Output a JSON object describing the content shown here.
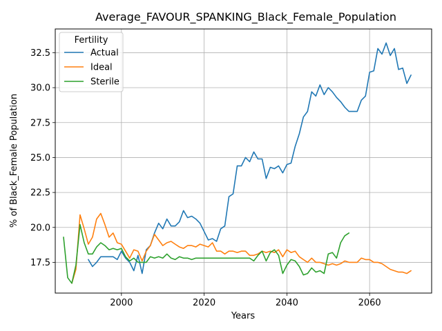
{
  "chart_data": {
    "type": "line",
    "title": "Average_FAVOUR_SPANKING_Black_Female_Population",
    "xlabel": "Years",
    "ylabel": "% of Black_Female Population",
    "xlim": [
      1984,
      2075
    ],
    "ylim": [
      15.3,
      34.2
    ],
    "xticks": [
      2000,
      2020,
      2040,
      2060
    ],
    "yticks": [
      17.5,
      20.0,
      22.5,
      25.0,
      27.5,
      30.0,
      32.5
    ],
    "ytick_labels": [
      "17.5",
      "20.0",
      "22.5",
      "25.0",
      "27.5",
      "30.0",
      "32.5"
    ],
    "grid": true,
    "legend": {
      "title": "Fertility",
      "location": "top-left"
    },
    "series": [
      {
        "name": "Actual",
        "color": "#1f77b4",
        "x": [
          1992,
          1993,
          1994,
          1995,
          1996,
          1997,
          1998,
          1999,
          2000,
          2001,
          2002,
          2003,
          2004,
          2005,
          2006,
          2007,
          2008,
          2009,
          2010,
          2011,
          2012,
          2013,
          2014,
          2015,
          2016,
          2017,
          2018,
          2019,
          2020,
          2021,
          2022,
          2023,
          2024,
          2025,
          2026,
          2027,
          2028,
          2029,
          2030,
          2031,
          2032,
          2033,
          2034,
          2035,
          2036,
          2037,
          2038,
          2039,
          2040,
          2041,
          2042,
          2043,
          2044,
          2045,
          2046,
          2047,
          2048,
          2049,
          2050,
          2051,
          2052,
          2053,
          2054,
          2055,
          2056,
          2057,
          2058,
          2059,
          2060,
          2061,
          2062,
          2063,
          2064,
          2065,
          2066,
          2067,
          2068,
          2069,
          2070
        ],
        "y": [
          17.7,
          17.2,
          17.5,
          17.9,
          17.9,
          17.9,
          17.9,
          17.7,
          18.3,
          17.8,
          17.5,
          16.9,
          18.0,
          16.7,
          18.4,
          18.7,
          19.6,
          20.3,
          19.9,
          20.6,
          20.1,
          20.1,
          20.4,
          21.2,
          20.7,
          20.8,
          20.6,
          20.3,
          19.7,
          19.1,
          19.2,
          19.0,
          19.9,
          20.1,
          22.2,
          22.4,
          24.4,
          24.4,
          25.0,
          24.7,
          25.4,
          24.9,
          24.9,
          23.5,
          24.3,
          24.2,
          24.4,
          23.9,
          24.5,
          24.6,
          25.8,
          26.7,
          27.9,
          28.3,
          29.7,
          29.4,
          30.2,
          29.5,
          30.0,
          29.7,
          29.3,
          29.0,
          28.6,
          28.3,
          28.3,
          28.3,
          29.1,
          29.4,
          31.1,
          31.2,
          32.8,
          32.4,
          33.2,
          32.3,
          32.8,
          31.3,
          31.4,
          30.3,
          30.9
        ]
      },
      {
        "name": "Ideal",
        "color": "#ff7f0e",
        "x": [
          1988,
          1989,
          1990,
          1991,
          1992,
          1993,
          1994,
          1995,
          1996,
          1997,
          1998,
          1999,
          2000,
          2001,
          2002,
          2003,
          2004,
          2005,
          2006,
          2007,
          2008,
          2009,
          2010,
          2011,
          2012,
          2013,
          2014,
          2015,
          2016,
          2017,
          2018,
          2019,
          2020,
          2021,
          2022,
          2023,
          2024,
          2025,
          2026,
          2027,
          2028,
          2029,
          2030,
          2031,
          2032,
          2033,
          2034,
          2035,
          2036,
          2037,
          2038,
          2039,
          2040,
          2041,
          2042,
          2043,
          2044,
          2045,
          2046,
          2047,
          2048,
          2049,
          2050,
          2051,
          2052,
          2053,
          2054,
          2055,
          2056,
          2057,
          2058,
          2059,
          2060,
          2061,
          2062,
          2063,
          2064,
          2065,
          2066,
          2067,
          2068,
          2069,
          2070
        ],
        "y": [
          16.0,
          17.0,
          20.9,
          19.9,
          18.8,
          19.3,
          20.6,
          21.0,
          20.2,
          19.3,
          19.6,
          18.9,
          18.8,
          18.3,
          17.8,
          18.4,
          18.3,
          17.6,
          18.3,
          18.7,
          19.5,
          19.1,
          18.7,
          18.9,
          19.0,
          18.8,
          18.6,
          18.5,
          18.7,
          18.7,
          18.6,
          18.8,
          18.7,
          18.6,
          18.9,
          18.3,
          18.3,
          18.1,
          18.3,
          18.3,
          18.2,
          18.3,
          18.3,
          18.0,
          18.0,
          18.1,
          18.3,
          18.2,
          18.3,
          18.2,
          18.4,
          17.9,
          18.4,
          18.2,
          18.3,
          17.9,
          17.7,
          17.5,
          17.8,
          17.5,
          17.5,
          17.4,
          17.3,
          17.4,
          17.3,
          17.4,
          17.6,
          17.5,
          17.5,
          17.5,
          17.8,
          17.7,
          17.7,
          17.5,
          17.5,
          17.4,
          17.2,
          17.0,
          16.9,
          16.8,
          16.8,
          16.7,
          16.9
        ]
      },
      {
        "name": "Sterile",
        "color": "#2ca02c",
        "x": [
          1986,
          1987,
          1988,
          1989,
          1990,
          1991,
          1992,
          1993,
          1994,
          1995,
          1996,
          1997,
          1998,
          1999,
          2000,
          2001,
          2002,
          2003,
          2004,
          2005,
          2006,
          2007,
          2008,
          2009,
          2010,
          2011,
          2012,
          2013,
          2014,
          2015,
          2016,
          2017,
          2018,
          2019,
          2020,
          2021,
          2022,
          2023,
          2024,
          2025,
          2026,
          2027,
          2028,
          2029,
          2030,
          2031,
          2032,
          2033,
          2034,
          2035,
          2036,
          2037,
          2038,
          2039,
          2040,
          2041,
          2042,
          2043,
          2044,
          2045,
          2046,
          2047,
          2048,
          2049,
          2050,
          2051,
          2052,
          2053,
          2054,
          2055
        ],
        "y": [
          19.3,
          16.4,
          16.0,
          17.3,
          20.2,
          18.9,
          18.1,
          18.1,
          18.6,
          18.9,
          18.7,
          18.4,
          18.5,
          18.4,
          18.5,
          17.9,
          17.6,
          17.8,
          17.5,
          17.5,
          17.5,
          17.9,
          17.8,
          17.9,
          17.8,
          18.1,
          17.8,
          17.7,
          17.9,
          17.8,
          17.8,
          17.7,
          17.8,
          17.8,
          17.8,
          17.8,
          17.8,
          17.8,
          17.8,
          17.8,
          17.8,
          17.8,
          17.8,
          17.8,
          17.8,
          17.8,
          17.6,
          18.0,
          18.3,
          17.6,
          18.2,
          18.4,
          18.0,
          16.7,
          17.3,
          17.7,
          17.6,
          17.2,
          16.6,
          16.7,
          17.1,
          16.8,
          16.9,
          16.7,
          18.1,
          18.2,
          17.8,
          18.9,
          19.4,
          19.6
        ]
      }
    ]
  }
}
